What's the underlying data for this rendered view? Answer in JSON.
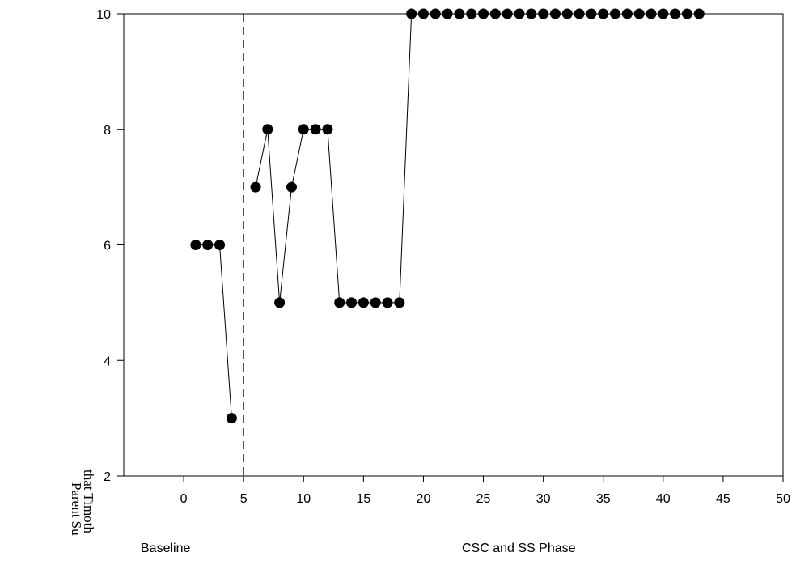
{
  "chart_data": {
    "type": "line",
    "title": "",
    "xlabel": "",
    "ylabel": "",
    "xlim": [
      -5,
      50
    ],
    "ylim": [
      2,
      10
    ],
    "x_ticks": [
      0,
      5,
      10,
      15,
      20,
      25,
      30,
      35,
      40,
      45,
      50
    ],
    "y_ticks": [
      2,
      4,
      6,
      8,
      10
    ],
    "grid": false,
    "legend": "none",
    "phase_change_x": 5,
    "phase_labels": [
      "Baseline",
      "CSC and SS Phase"
    ],
    "side_text": [
      "that Timoth",
      "Parent Su"
    ],
    "colors": {
      "line": "#000000",
      "marker": "#000000",
      "axis": "#000000"
    },
    "series": [
      {
        "x": [
          1,
          2,
          3,
          4
        ],
        "y": [
          6,
          6,
          6,
          3
        ]
      },
      {
        "x": [
          6,
          7,
          8,
          9,
          10,
          11,
          12,
          13,
          14,
          15,
          16,
          17,
          18,
          19,
          20,
          21,
          22,
          23,
          24,
          25,
          26,
          27,
          28,
          29,
          30,
          31,
          32,
          33,
          34,
          35,
          36,
          37,
          38,
          39,
          40,
          41,
          42,
          43
        ],
        "y": [
          7,
          8,
          5,
          7,
          8,
          8,
          8,
          5,
          5,
          5,
          5,
          5,
          5,
          10,
          10,
          10,
          10,
          10,
          10,
          10,
          10,
          10,
          10,
          10,
          10,
          10,
          10,
          10,
          10,
          10,
          10,
          10,
          10,
          10,
          10,
          10,
          10,
          10
        ]
      }
    ]
  }
}
